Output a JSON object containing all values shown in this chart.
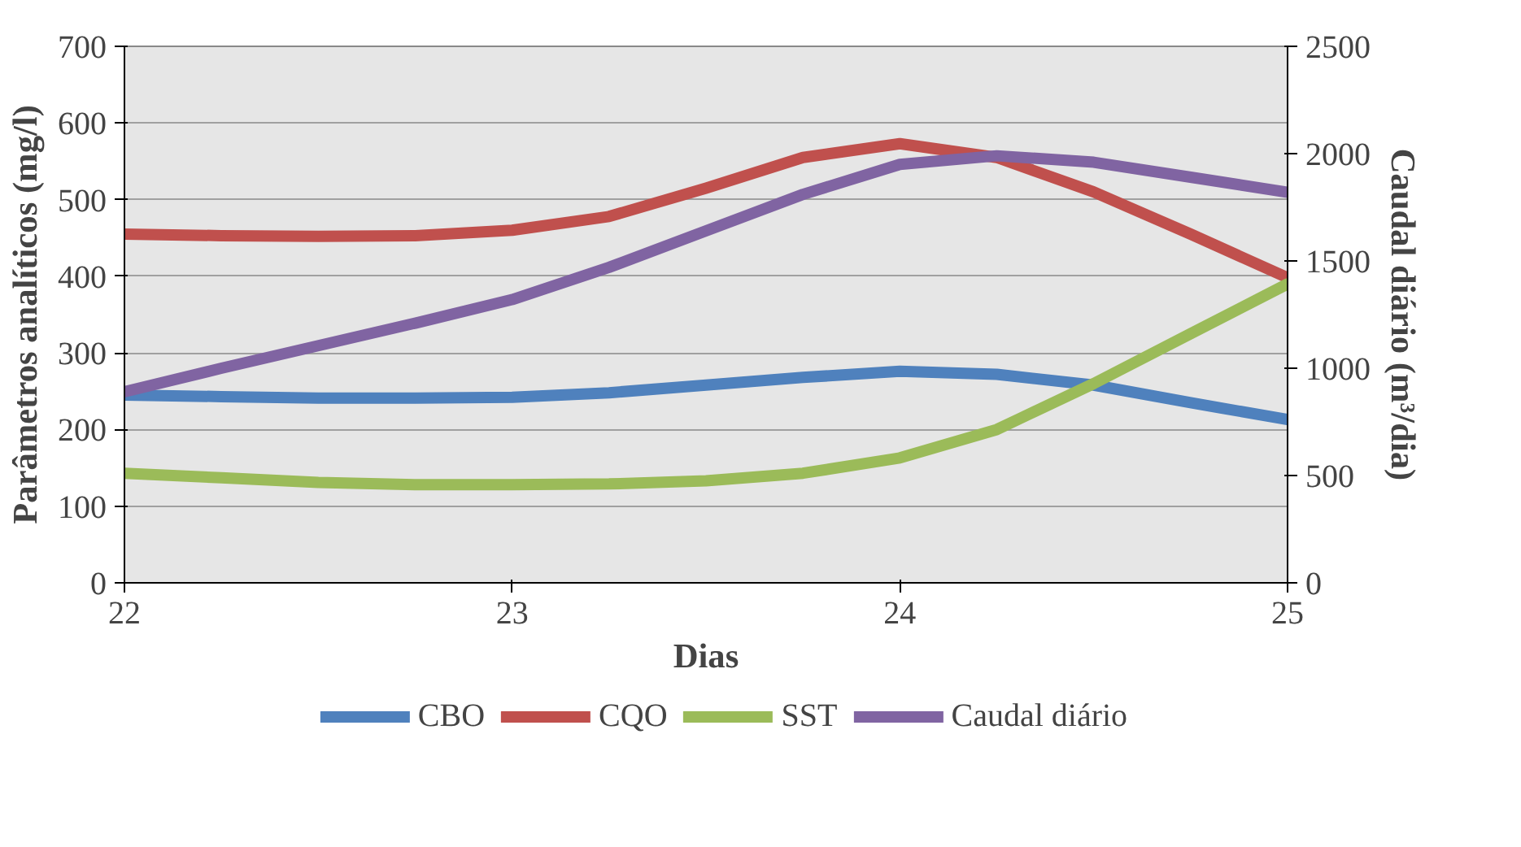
{
  "chart_data": {
    "type": "line",
    "xlabel": "Dias",
    "ylabel": "Parâmetros analíticos (mg/l)",
    "y2label": "Caudal diário (m³/dia)",
    "x": [
      22,
      22.25,
      22.5,
      22.75,
      23,
      23.25,
      23.5,
      23.75,
      24,
      24.25,
      24.5,
      24.75,
      25
    ],
    "series": [
      {
        "name": "CBO",
        "color": "#4f81bd",
        "values": [
          245,
          243,
          241,
          241,
          242,
          248,
          258,
          268,
          276,
          272,
          258,
          235,
          213
        ]
      },
      {
        "name": "CQO",
        "color": "#c0504d",
        "values": [
          455,
          453,
          452,
          453,
          460,
          478,
          515,
          555,
          573,
          555,
          510,
          455,
          398
        ]
      },
      {
        "name": "SST",
        "color": "#9bbb59",
        "values": [
          143,
          137,
          131,
          128,
          128,
          129,
          133,
          143,
          163,
          200,
          260,
          325,
          390
        ]
      },
      {
        "name": "Caudal diário",
        "color": "#8064a2",
        "values": [
          890,
          1000,
          1105,
          1210,
          1320,
          1470,
          1640,
          1810,
          1950,
          1990,
          1960,
          1890,
          1820
        ],
        "axis": "y2"
      }
    ],
    "xlim": [
      22,
      25
    ],
    "xticks": [
      22,
      23,
      24,
      25
    ],
    "ylim": [
      0,
      700
    ],
    "yticks": [
      0,
      100,
      200,
      300,
      400,
      500,
      600,
      700
    ],
    "y2lim": [
      0,
      2500
    ],
    "y2ticks": [
      0,
      500,
      1000,
      1500,
      2000,
      2500
    ],
    "grid": "y",
    "legend": "bottom",
    "marker": "none",
    "line_style": "solid"
  }
}
